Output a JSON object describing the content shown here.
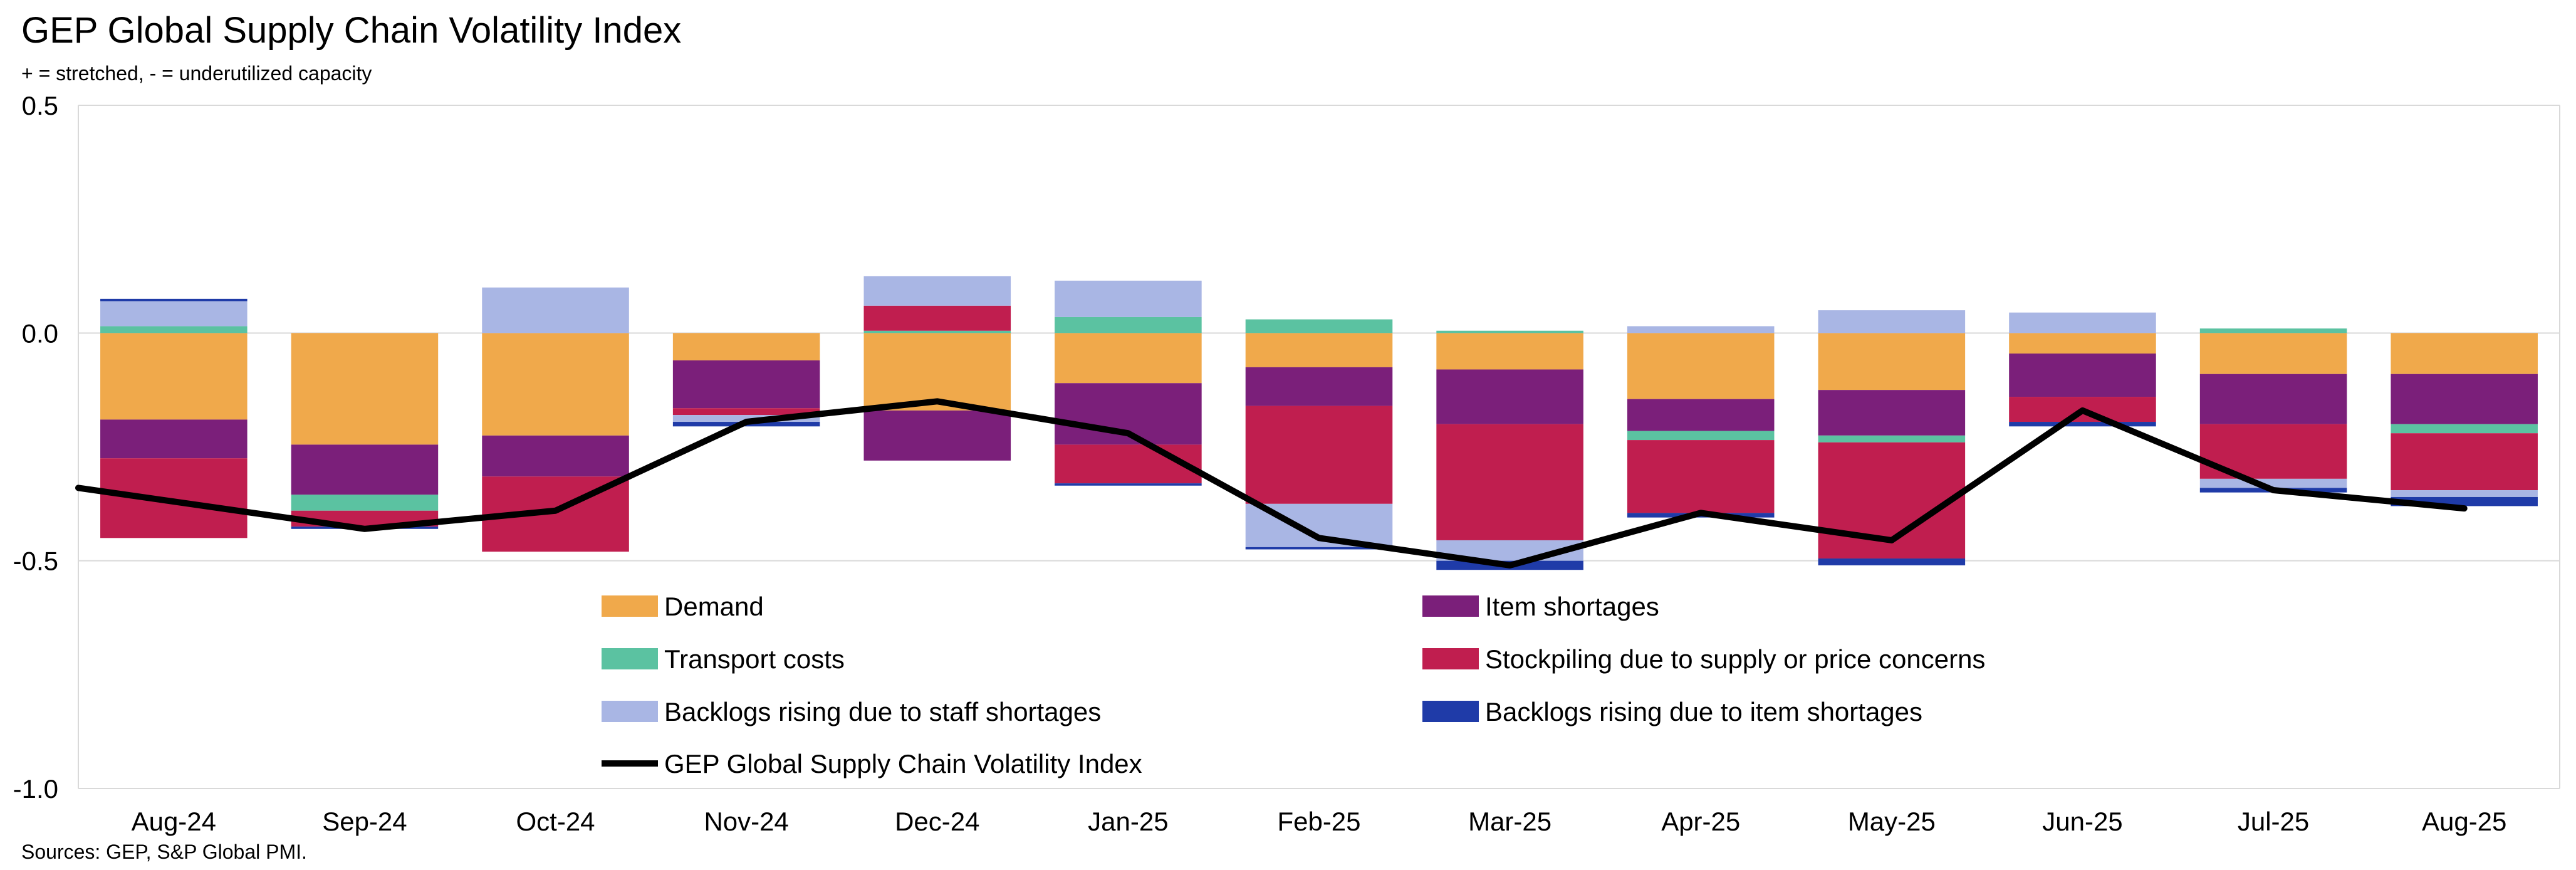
{
  "header": {
    "title": "GEP Global Supply Chain Volatility Index",
    "subtitle": "+ = stretched, - = underutilized capacity"
  },
  "footer": {
    "source": "Sources: GEP, S&P Global PMI."
  },
  "chart_data": {
    "type": "bar",
    "stacked": true,
    "title": "GEP Global Supply Chain Volatility Index",
    "subtitle": "+ = stretched, - = underutilized capacity",
    "xlabel": "",
    "ylabel": "",
    "ylim": [
      -1.0,
      0.5
    ],
    "yticks": [
      0.5,
      0.0,
      -0.5,
      -1.0
    ],
    "ytick_labels": [
      "0.5",
      "0.0",
      "-0.5",
      "-1.0"
    ],
    "grid": true,
    "legend_position": "bottom-center",
    "categories": [
      "Aug-24",
      "Sep-24",
      "Oct-24",
      "Nov-24",
      "Dec-24",
      "Jan-25",
      "Feb-25",
      "Mar-25",
      "Apr-25",
      "May-25",
      "Jun-25",
      "Jul-25",
      "Aug-25"
    ],
    "series": [
      {
        "name": "Demand",
        "color": "#F0A94B",
        "values": [
          -0.19,
          -0.245,
          -0.225,
          -0.06,
          -0.17,
          -0.11,
          -0.075,
          -0.08,
          -0.145,
          -0.125,
          -0.045,
          -0.09,
          -0.09
        ]
      },
      {
        "name": "Item shortages",
        "color": "#7B1F7A",
        "values": [
          -0.085,
          -0.11,
          -0.09,
          -0.105,
          -0.11,
          -0.135,
          -0.085,
          -0.12,
          -0.07,
          -0.1,
          -0.095,
          -0.11,
          -0.11
        ]
      },
      {
        "name": "Transport costs",
        "color": "#5BC2A1",
        "values": [
          0.015,
          -0.035,
          0.0,
          0.0,
          0.005,
          0.035,
          0.03,
          0.005,
          -0.02,
          -0.015,
          0.0,
          0.01,
          -0.02
        ]
      },
      {
        "name": "Stockpiling due to supply or price concerns",
        "color": "#C01E4F",
        "values": [
          -0.175,
          -0.035,
          -0.165,
          -0.015,
          0.055,
          -0.085,
          -0.215,
          -0.255,
          -0.16,
          -0.255,
          -0.055,
          -0.12,
          -0.125
        ]
      },
      {
        "name": "Backlogs rising due to staff shortages",
        "color": "#A9B6E4",
        "values": [
          0.055,
          0.0,
          0.1,
          -0.015,
          0.065,
          0.08,
          -0.095,
          -0.045,
          0.015,
          0.05,
          0.045,
          -0.02,
          -0.015
        ]
      },
      {
        "name": "Backlogs rising due to item shortages",
        "color": "#1F3BA8",
        "values": [
          0.005,
          -0.005,
          0.0,
          -0.01,
          0.0,
          -0.005,
          -0.005,
          -0.02,
          -0.01,
          -0.015,
          -0.01,
          -0.01,
          -0.02
        ]
      }
    ],
    "line": {
      "name": "GEP Global Supply Chain Volatility Index",
      "color": "#000000",
      "values": [
        -0.37,
        -0.43,
        -0.39,
        -0.195,
        -0.15,
        -0.22,
        -0.45,
        -0.51,
        -0.395,
        -0.455,
        -0.17,
        -0.345,
        -0.385
      ]
    },
    "legend_order": [
      "Demand",
      "Item shortages",
      "Transport costs",
      "Stockpiling due to supply or price concerns",
      "Backlogs rising due to staff shortages",
      "Backlogs rising due to item shortages",
      "GEP Global Supply Chain Volatility Index"
    ]
  }
}
